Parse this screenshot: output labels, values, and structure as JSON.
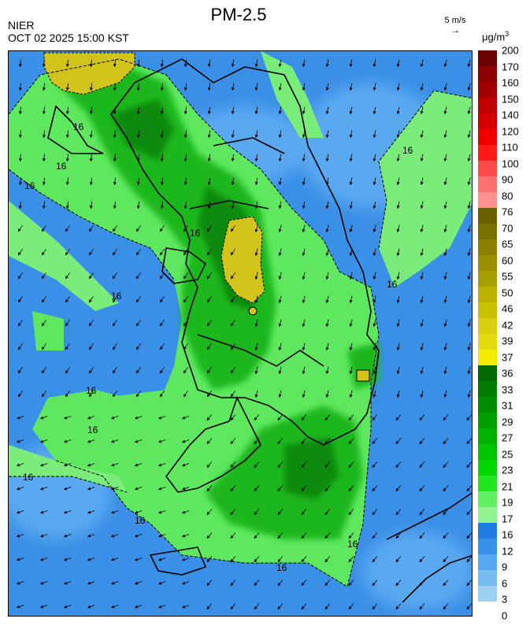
{
  "title": "PM-2.5",
  "source": "NIER",
  "datetime": "OCT 02 2025 15:00 KST",
  "wind_reference": {
    "label": "5 m/s",
    "arrow": "→"
  },
  "unit": {
    "base": "μg/m",
    "exp": "3"
  },
  "colorbar": {
    "labels": [
      "200",
      "170",
      "160",
      "150",
      "140",
      "120",
      "110",
      "100",
      "90",
      "80",
      "76",
      "70",
      "65",
      "60",
      "55",
      "50",
      "46",
      "42",
      "39",
      "37",
      "36",
      "33",
      "31",
      "29",
      "27",
      "25",
      "23",
      "21",
      "19",
      "17",
      "16",
      "12",
      "9",
      "6",
      "3",
      "0"
    ],
    "colors": [
      "#6a0000",
      "#8b0000",
      "#a30000",
      "#bf0000",
      "#d60000",
      "#ee0000",
      "#ff1a1a",
      "#ff4a4a",
      "#ff7070",
      "#ff9090",
      "#6b6000",
      "#7a7000",
      "#8a7f00",
      "#9a8f00",
      "#aa9f00",
      "#bbb000",
      "#c9c000",
      "#d9cf10",
      "#e4da10",
      "#f2ec00",
      "#006a00",
      "#007c00",
      "#008e00",
      "#00a000",
      "#00b200",
      "#00c400",
      "#00d600",
      "#20e820",
      "#60f060",
      "#90f590",
      "#1e7be0",
      "#3690ec",
      "#56a8f0",
      "#78bdf2",
      "#9cd0f2"
    ]
  },
  "map": {
    "contour_labels": [
      "16",
      "16",
      "16",
      "16",
      "16",
      "16",
      "16",
      "16",
      "16",
      "16",
      "16",
      "16",
      "16"
    ]
  }
}
